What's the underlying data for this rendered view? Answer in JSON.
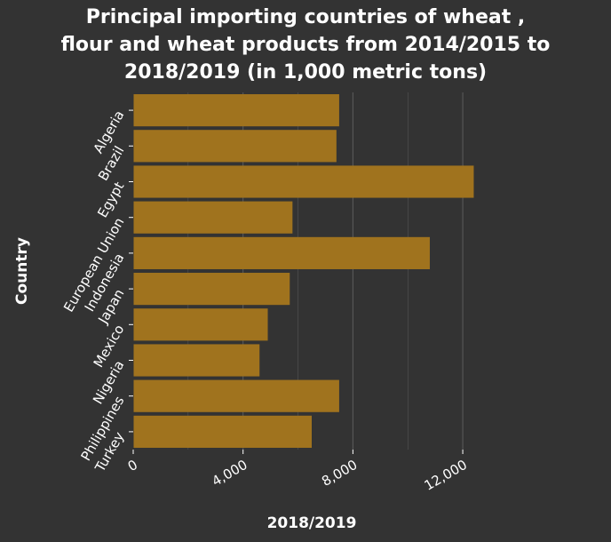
{
  "chart_data": {
    "type": "bar",
    "orientation": "horizontal",
    "title_lines": [
      "Principal importing countries of wheat ,",
      "flour and wheat products from 2014/2015 to",
      "2018/2019 (in 1,000 metric tons)"
    ],
    "title": "Principal importing countries of wheat , flour and wheat products from 2014/2015 to 2018/2019 (in 1,000 metric tons)",
    "xlabel": "2018/2019",
    "ylabel": "Country",
    "categories": [
      "Algeria",
      "Brazil",
      "Egypt",
      "European Union",
      "Indonesia",
      "Japan",
      "Mexico",
      "Nigeria",
      "Philippines",
      "Turkey"
    ],
    "values": [
      7500,
      7400,
      12400,
      5800,
      10800,
      5700,
      4900,
      4600,
      7500,
      6500
    ],
    "xlim": [
      0,
      13000
    ],
    "xticks": [
      0,
      4000,
      8000,
      12000
    ],
    "xtick_labels": [
      "0",
      "4,000",
      "8,000",
      "12,000"
    ],
    "grid": true,
    "colors": {
      "background": "#333333",
      "bar": "#a0731e",
      "grid": "#5c5c5c",
      "text": "#ffffff"
    }
  }
}
